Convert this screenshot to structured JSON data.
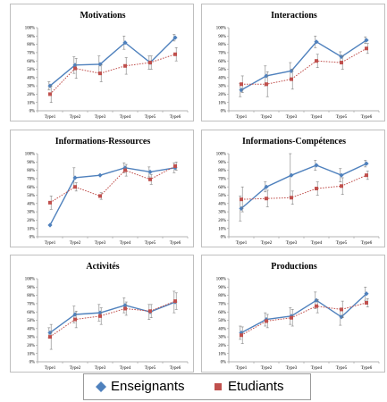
{
  "colors": {
    "enseignants": "#4f81bd",
    "etudiants": "#c0504d",
    "error_bars": "#7f7f7f",
    "grid_axis": "#9a9a9a"
  },
  "legend": {
    "enseignants_label": "Enseignants",
    "etudiants_label": "Etudiants",
    "enseignants_icon": "diamond-marker-icon",
    "etudiants_icon": "square-marker-icon"
  },
  "chart_data": [
    {
      "type": "line",
      "title": "Motivations",
      "categories": [
        "Type1",
        "Type2",
        "Type3",
        "Type4",
        "Type5",
        "Type6"
      ],
      "y_ticks": [
        "0%",
        "10%",
        "20%",
        "30%",
        "40%",
        "50%",
        "60%",
        "70%",
        "80%",
        "90%",
        "100%"
      ],
      "ylim": [
        0,
        100
      ],
      "grid": false,
      "series": [
        {
          "name": "Enseignants",
          "values": [
            30,
            55,
            56,
            82,
            58,
            88
          ],
          "err": [
            5,
            10,
            10,
            8,
            8,
            4
          ]
        },
        {
          "name": "Etudiants",
          "values": [
            20,
            51,
            45,
            54,
            58,
            68
          ],
          "err": [
            10,
            12,
            10,
            10,
            8,
            8
          ]
        }
      ]
    },
    {
      "type": "line",
      "title": "Interactions",
      "categories": [
        "Type1",
        "Type2",
        "Type3",
        "Type4",
        "Type5",
        "Type6"
      ],
      "y_ticks": [
        "0%",
        "10%",
        "20%",
        "30%",
        "40%",
        "50%",
        "60%",
        "70%",
        "80%",
        "90%",
        "100%"
      ],
      "ylim": [
        0,
        100
      ],
      "grid": false,
      "series": [
        {
          "name": "Enseignants",
          "values": [
            25,
            42,
            48,
            83,
            65,
            85
          ],
          "err": [
            8,
            12,
            10,
            7,
            6,
            4
          ]
        },
        {
          "name": "Etudiants",
          "values": [
            32,
            32,
            38,
            60,
            58,
            75
          ],
          "err": [
            10,
            15,
            12,
            8,
            8,
            6
          ]
        }
      ]
    },
    {
      "type": "line",
      "title": "Informations-Ressources",
      "categories": [
        "Type1",
        "Type2",
        "Type3",
        "Type4",
        "Type5",
        "Type6"
      ],
      "y_ticks": [
        "0%",
        "10%",
        "20%",
        "30%",
        "40%",
        "50%",
        "60%",
        "70%",
        "80%",
        "90%",
        "100%"
      ],
      "ylim": [
        0,
        100
      ],
      "grid": false,
      "series": [
        {
          "name": "Enseignants",
          "values": [
            14,
            71,
            74,
            83,
            78,
            83
          ],
          "err": [
            0,
            12,
            0,
            6,
            6,
            6
          ]
        },
        {
          "name": "Etudiants",
          "values": [
            41,
            60,
            49,
            80,
            69,
            85
          ],
          "err": [
            8,
            5,
            4,
            7,
            6,
            5
          ]
        }
      ]
    },
    {
      "type": "line",
      "title": "Informations-Compétences",
      "categories": [
        "Type1",
        "Type2",
        "Type3",
        "Type4",
        "Type5",
        "Type6"
      ],
      "y_ticks": [
        "0%",
        "10%",
        "20%",
        "30%",
        "40%",
        "50%",
        "60%",
        "70%",
        "80%",
        "90%",
        "100%"
      ],
      "ylim": [
        0,
        100
      ],
      "grid": false,
      "series": [
        {
          "name": "Enseignants",
          "values": [
            34,
            60,
            74,
            86,
            74,
            88
          ],
          "err": [
            15,
            6,
            26,
            6,
            8,
            4
          ]
        },
        {
          "name": "Etudiants",
          "values": [
            45,
            46,
            47,
            58,
            61,
            74
          ],
          "err": [
            15,
            10,
            8,
            8,
            10,
            5
          ]
        }
      ]
    },
    {
      "type": "line",
      "title": "Activités",
      "categories": [
        "Type1",
        "Type2",
        "Type3",
        "Type4",
        "Type5",
        "Type6"
      ],
      "y_ticks": [
        "0%",
        "10%",
        "20%",
        "30%",
        "40%",
        "50%",
        "60%",
        "70%",
        "80%",
        "90%",
        "100%"
      ],
      "ylim": [
        0,
        100
      ],
      "grid": false,
      "series": [
        {
          "name": "Enseignants",
          "values": [
            35,
            57,
            59,
            68,
            60,
            72
          ],
          "err": [
            6,
            10,
            10,
            9,
            9,
            13
          ]
        },
        {
          "name": "Etudiants",
          "values": [
            30,
            51,
            55,
            64,
            61,
            73
          ],
          "err": [
            15,
            10,
            10,
            8,
            8,
            10
          ]
        }
      ]
    },
    {
      "type": "line",
      "title": "Productions",
      "categories": [
        "Type1",
        "Type2",
        "Type3",
        "Type4",
        "Type5",
        "Type6"
      ],
      "y_ticks": [
        "0%",
        "10%",
        "20%",
        "30%",
        "40%",
        "50%",
        "60%",
        "70%",
        "80%",
        "90%",
        "100%"
      ],
      "ylim": [
        0,
        100
      ],
      "grid": false,
      "series": [
        {
          "name": "Enseignants",
          "values": [
            35,
            51,
            55,
            74,
            54,
            82
          ],
          "err": [
            8,
            8,
            10,
            10,
            10,
            8
          ]
        },
        {
          "name": "Etudiants",
          "values": [
            32,
            49,
            53,
            67,
            63,
            71
          ],
          "err": [
            10,
            8,
            10,
            8,
            10,
            5
          ]
        }
      ]
    }
  ]
}
